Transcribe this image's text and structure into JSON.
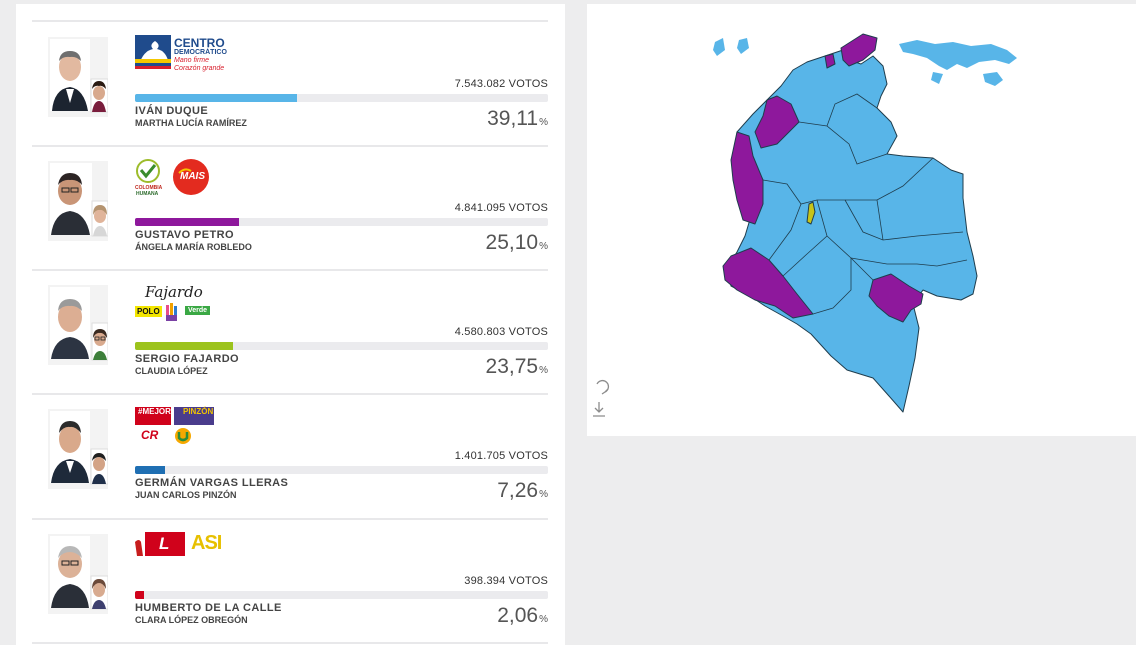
{
  "candidates": [
    {
      "name": "IVÁN DUQUE",
      "vice": "MARTHA LUCÍA RAMÍREZ",
      "votes": "7.543.082 VOTOS",
      "percent": "39,11",
      "percent_sign": "%",
      "share": 0.3911,
      "color": "#58b5e8",
      "logo": {
        "party": "CENTRO",
        "party2": "DEMOCRÁTICO",
        "slogan1": "Mano firme",
        "slogan2": "Corazón grande"
      }
    },
    {
      "name": "GUSTAVO PETRO",
      "vice": "ÁNGELA MARÍA ROBLEDO",
      "votes": "4.841.095 VOTOS",
      "percent": "25,10",
      "percent_sign": "%",
      "share": 0.251,
      "color": "#8e189c",
      "logo": {
        "party": "COLOMBIA",
        "party2": "HUMANA",
        "party3": "MAIS"
      }
    },
    {
      "name": "SERGIO FAJARDO",
      "vice": "CLAUDIA LÓPEZ",
      "votes": "4.580.803 VOTOS",
      "percent": "23,75",
      "percent_sign": "%",
      "share": 0.2375,
      "color": "#9cc31d",
      "logo": {
        "signature": "Fajardo",
        "party": "POLO",
        "party2": "Verde"
      }
    },
    {
      "name": "GERMÁN VARGAS LLERAS",
      "vice": "JUAN CARLOS PINZÓN",
      "votes": "1.401.705 VOTOS",
      "percent": "7,26",
      "percent_sign": "%",
      "share": 0.0726,
      "color": "#1f6fb3",
      "logo": {
        "party": "#MEJOR",
        "party2": "PINZÓN",
        "party3": "CR"
      }
    },
    {
      "name": "HUMBERTO DE LA CALLE",
      "vice": "CLARA LÓPEZ OBREGÓN",
      "votes": "398.394 VOTOS",
      "percent": "2,06",
      "percent_sign": "%",
      "share": 0.0206,
      "color": "#d0021b",
      "logo": {
        "party": "L",
        "party2": "ASI"
      }
    }
  ],
  "map": {
    "colors": {
      "duque": "#58b5e8",
      "petro": "#8e189c",
      "fajardo": "#c7c41a",
      "border": "#1f3d4d"
    },
    "tools": [
      "refresh-icon",
      "download-icon"
    ]
  }
}
